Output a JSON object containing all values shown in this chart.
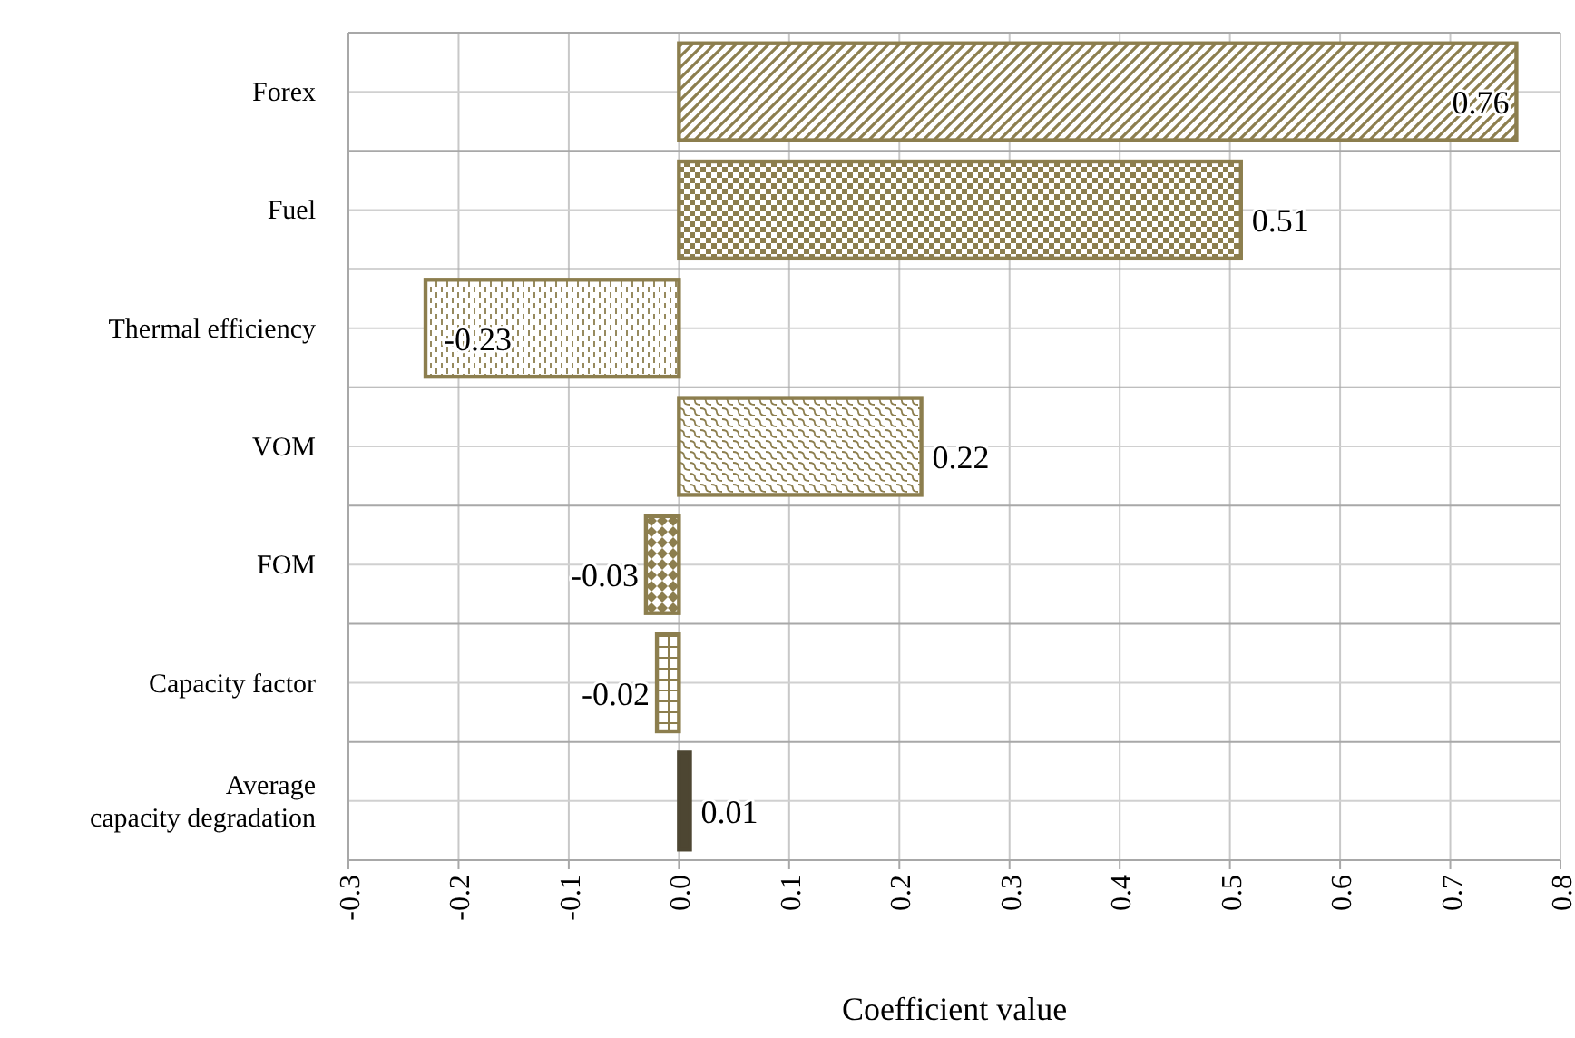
{
  "chart_data": {
    "type": "bar",
    "orientation": "horizontal",
    "xlabel": "Coefficient value",
    "categories": [
      "Forex",
      "Fuel",
      "Thermal efficiency",
      "VOM",
      "FOM",
      "Capacity factor",
      "Average capacity degradation"
    ],
    "values": [
      0.76,
      0.51,
      -0.23,
      0.22,
      -0.03,
      -0.02,
      0.01
    ],
    "colors": [
      "#8c7e4e",
      "#8c7e4e",
      "#8c7e4e",
      "#8c7e4e",
      "#8c7e4e",
      "#8c7e4e",
      "#4d4632"
    ],
    "xlim": [
      -0.3,
      0.8
    ],
    "xticks": [
      -0.3,
      -0.2,
      -0.1,
      {
        "value": 0,
        "label": "0.0"
      },
      0.1,
      0.2,
      0.3,
      0.4,
      0.5,
      0.6,
      0.7,
      0.8
    ],
    "grid": true,
    "data_labels": true
  }
}
